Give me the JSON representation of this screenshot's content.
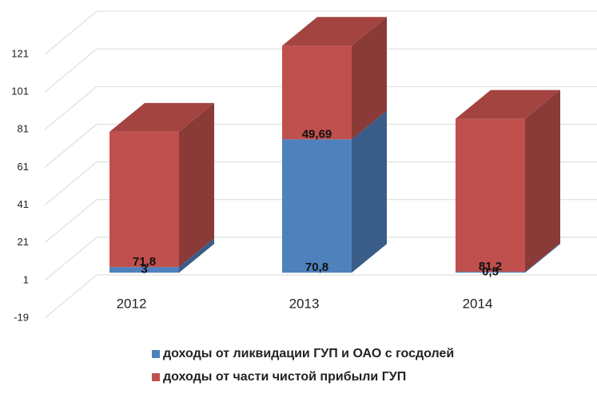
{
  "chart_data": {
    "type": "bar",
    "stacked": true,
    "categories": [
      "2012",
      "2013",
      "2014"
    ],
    "series": [
      {
        "name": "доходы от ликвидации ГУП и ОАО с госдолей",
        "color": "#4f81bd",
        "values": [
          3,
          70.8,
          0.5
        ],
        "value_labels": [
          "3",
          "70,8",
          "0,5"
        ]
      },
      {
        "name": "доходы от части чистой прибыли ГУП",
        "color": "#c0504d",
        "values": [
          71.8,
          49.69,
          81.2
        ],
        "value_labels": [
          "71,8",
          "49,69",
          "81,2"
        ]
      }
    ],
    "ylim": [
      -19,
      121
    ],
    "yticks": [
      -19,
      1,
      21,
      41,
      61,
      81,
      101,
      121
    ],
    "grid": true
  }
}
